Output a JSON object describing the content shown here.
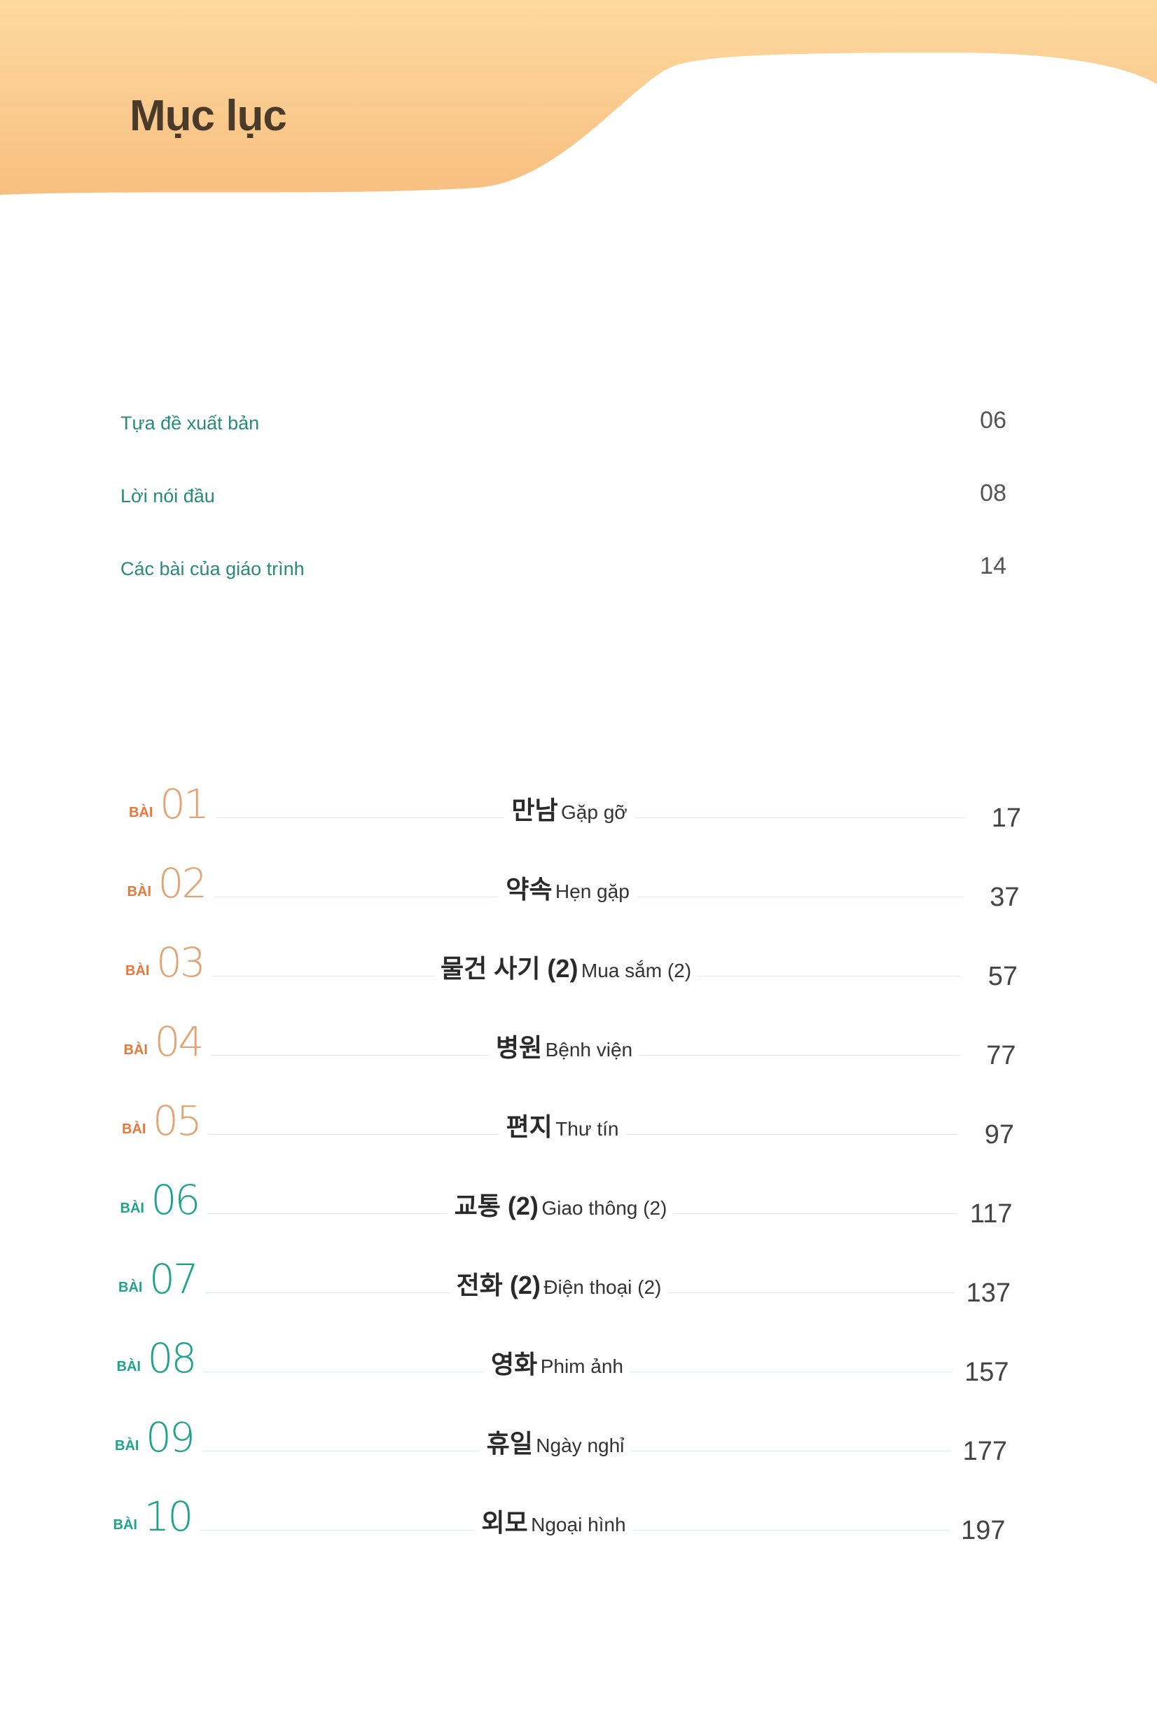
{
  "header": {
    "title": "Mục lục"
  },
  "colors": {
    "banner": "#fbc98a",
    "orange": "#e8773a",
    "orange_numeral": "#e3a373",
    "teal": "#1fa38c",
    "intro_text": "#2a8a7a"
  },
  "intro": [
    {
      "label": "Tựa đề xuất bản",
      "page": "06"
    },
    {
      "label": "Lời nói đầu",
      "page": "08"
    },
    {
      "label": "Các bài của giáo trình",
      "page": "14"
    }
  ],
  "lessons": [
    {
      "prefix": "BÀI",
      "number": "01",
      "korean": "만남",
      "vietnamese": "Gặp gỡ",
      "page": "17"
    },
    {
      "prefix": "BÀI",
      "number": "02",
      "korean": "약속",
      "vietnamese": "Hẹn gặp",
      "page": "37"
    },
    {
      "prefix": "BÀI",
      "number": "03",
      "korean": "물건 사기 (2)",
      "vietnamese": "Mua sắm (2)",
      "page": "57"
    },
    {
      "prefix": "BÀI",
      "number": "04",
      "korean": "병원",
      "vietnamese": "Bệnh viện",
      "page": "77"
    },
    {
      "prefix": "BÀI",
      "number": "05",
      "korean": "편지",
      "vietnamese": "Thư tín",
      "page": "97"
    },
    {
      "prefix": "BÀI",
      "number": "06",
      "korean": "교통 (2)",
      "vietnamese": "Giao thông (2)",
      "page": "117"
    },
    {
      "prefix": "BÀI",
      "number": "07",
      "korean": "전화 (2)",
      "vietnamese": "Điện thoại (2)",
      "page": "137"
    },
    {
      "prefix": "BÀI",
      "number": "08",
      "korean": "영화",
      "vietnamese": "Phim ảnh",
      "page": "157"
    },
    {
      "prefix": "BÀI",
      "number": "09",
      "korean": "휴일",
      "vietnamese": "Ngày nghỉ",
      "page": "177"
    },
    {
      "prefix": "BÀI",
      "number": "10",
      "korean": "외모",
      "vietnamese": "Ngoại hình",
      "page": "197"
    }
  ]
}
